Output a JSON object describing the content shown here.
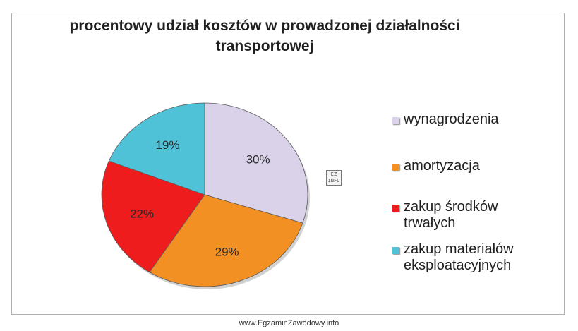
{
  "chart_data": {
    "type": "pie",
    "title": "procentowy udział kosztów w prowadzonej działalności\ntransportowej",
    "slices": [
      {
        "label": "wynagrodzenia",
        "value": 30,
        "value_label": "30%",
        "color": "#d9d2e9"
      },
      {
        "label": "amortyzacja",
        "value": 29,
        "value_label": "29%",
        "color": "#f39023"
      },
      {
        "label": "zakup środków trwałych",
        "value": 22,
        "value_label": "22%",
        "color": "#ee1c1c"
      },
      {
        "label": "zakup materiałów eksploatacyjnych",
        "value": 19,
        "value_label": "19%",
        "color": "#4fc2d8"
      }
    ],
    "legend_lines": [
      [
        "wynagrodzenia"
      ],
      [
        "amortyzacja"
      ],
      [
        "zakup środków",
        "trwałych"
      ],
      [
        "zakup materiałów",
        "eksploatacyjnych"
      ]
    ],
    "start_angle_deg": 0,
    "direction": "clockwise",
    "legend_position": "right"
  },
  "watermark": {
    "badge_text": "EZ INFO"
  },
  "footer": {
    "text": "www.EgzaminZawodowy.info"
  }
}
